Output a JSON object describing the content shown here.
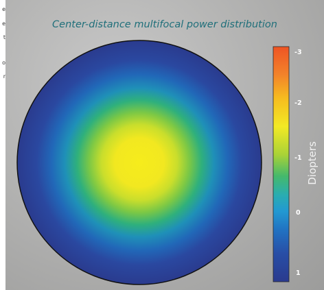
{
  "figure": {
    "title": "Center-distance multifocal power distribution",
    "colorbar": {
      "axis_label": "Diopters",
      "ticks": [
        "-3",
        "-2",
        "-1",
        "0",
        "1"
      ],
      "range": [
        -3,
        1
      ],
      "colormap": [
        "#2a3a8e",
        "#1f6fc3",
        "#2aaed3",
        "#2fb98a",
        "#8dcb3a",
        "#f2e926",
        "#f5b21f",
        "#ee5a24"
      ]
    },
    "lens": {
      "center_color": "#f5eb1e",
      "edge_color": "#2a3c8f",
      "outline_color": "#000000"
    },
    "left_edge_text": [
      "e",
      "e",
      "t",
      "o",
      "r"
    ]
  }
}
